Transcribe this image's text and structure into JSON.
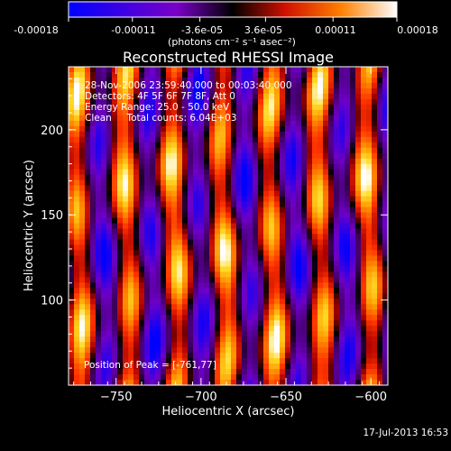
{
  "chart_data": {
    "type": "heatmap",
    "title": "Reconstructed RHESSI Image",
    "xlabel": "Heliocentric X (arcsec)",
    "ylabel": "Heliocentric Y (arcsec)",
    "xlim": [
      -778,
      -590
    ],
    "ylim": [
      50,
      237
    ],
    "x_ticks": [
      -750,
      -700,
      -650,
      -600
    ],
    "y_ticks": [
      100,
      150,
      200
    ],
    "colorbar": {
      "ticks": [
        -0.00018,
        -0.00011,
        -3.6e-05,
        3.6e-05,
        0.00011,
        0.00018
      ],
      "tick_labels": [
        "-0.00018",
        "-0.00011",
        "-3.6e-05",
        "3.6e-05",
        "0.00011",
        "0.00018"
      ],
      "unit_label": "(photons cm⁻² s⁻¹ asec⁻²)",
      "range": [
        -0.00018,
        0.00018
      ]
    },
    "annotations": [
      "28-Nov-2006 23:59:40.000 to 00:03:40.000",
      "Detectors: 4F 5F 6F 7F 8F, Att 0",
      "Energy Range: 25.0 - 50.0 keV",
      "Clean     Total counts: 6.04E+03"
    ],
    "peak_label": "Position of Peak = [-761,77]",
    "peak_position": [
      -761,
      77
    ],
    "timestamp": "17-Jul-2013 16:53"
  }
}
